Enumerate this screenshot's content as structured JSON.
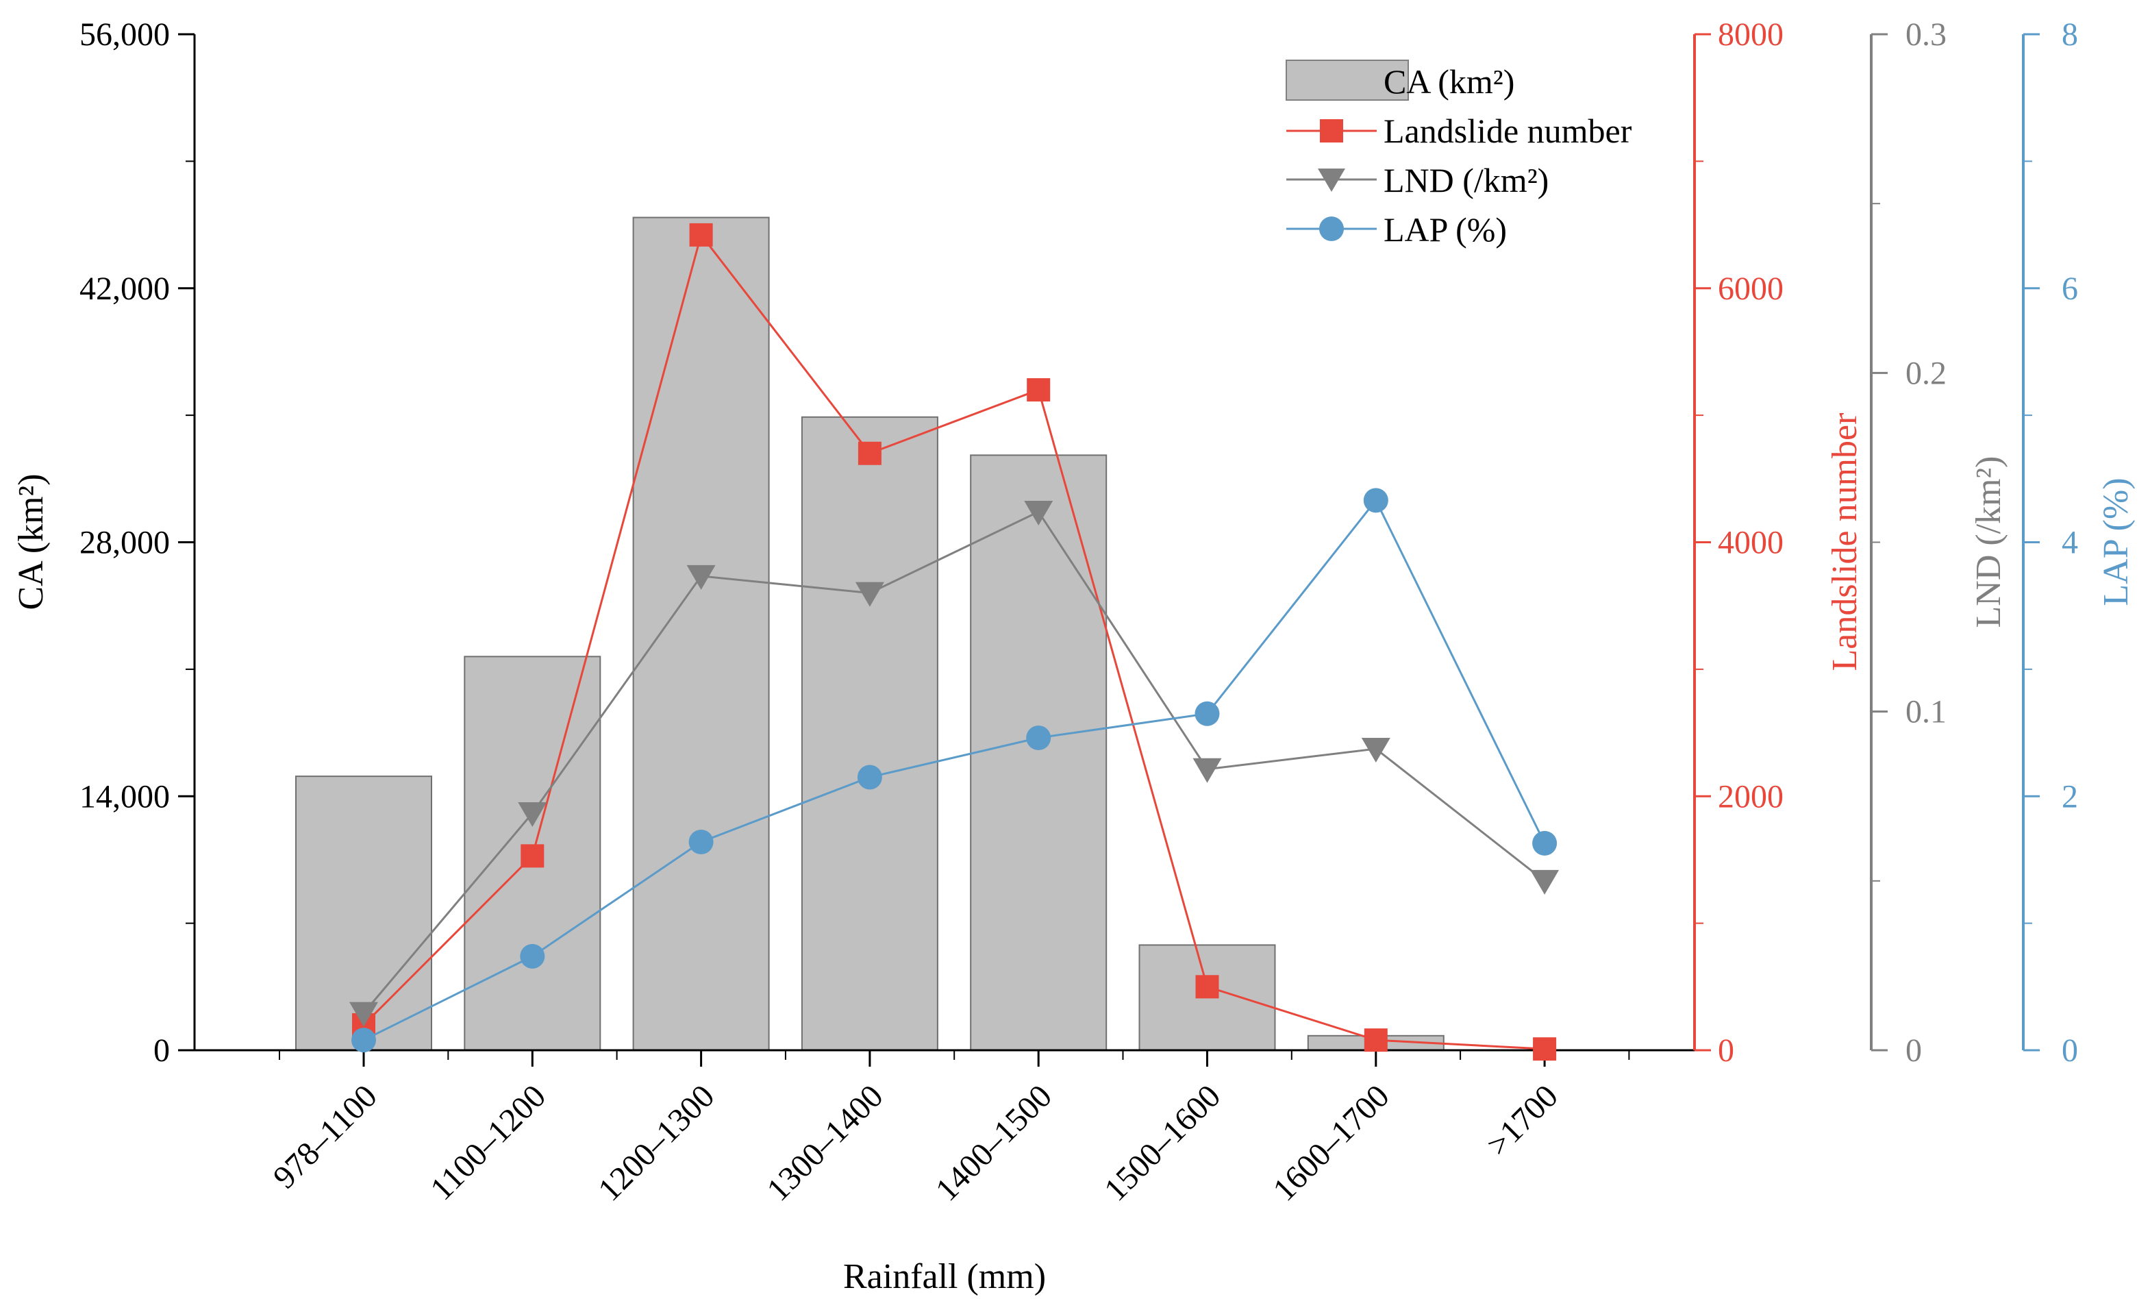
{
  "chart_data": {
    "type": "bar+line",
    "xlabel": "Rainfall (mm)",
    "categories": [
      "978–1100",
      "1100–1200",
      "1200–1300",
      "1300–1400",
      "1400–1500",
      "1500–1600",
      "1600–1700",
      ">1700"
    ],
    "axes": {
      "ca": {
        "label": "CA (km²)",
        "range": [
          0,
          56000
        ],
        "ticks": [
          "0",
          "14,000",
          "28,000",
          "42,000",
          "56,000"
        ],
        "color": "#000000"
      },
      "landslide": {
        "label": "Landslide number",
        "range": [
          0,
          8000
        ],
        "ticks": [
          "0",
          "2000",
          "4000",
          "6000",
          "8000"
        ],
        "color": "#e8473b"
      },
      "lnd": {
        "label": "LND (/km²)",
        "range": [
          0,
          0.3
        ],
        "ticks": [
          "0",
          "0.1",
          "0.2",
          "0.3"
        ],
        "color": "#808080"
      },
      "lap": {
        "label": "LAP (%)",
        "range": [
          0,
          8
        ],
        "ticks": [
          "0",
          "2",
          "4",
          "6",
          "8"
        ],
        "color": "#5b9bc9"
      }
    },
    "series": [
      {
        "name": "CA (km²)",
        "type": "bar",
        "axis": "ca",
        "color": "#c0c0c0",
        "values": [
          15100,
          21700,
          45900,
          34900,
          32800,
          5800,
          800,
          0
        ]
      },
      {
        "name": "Landslide number",
        "type": "line",
        "marker": "square",
        "axis": "landslide",
        "color": "#e8473b",
        "values": [
          200,
          1530,
          6420,
          4700,
          5200,
          500,
          80,
          10
        ]
      },
      {
        "name": "LND (/km²)",
        "type": "line",
        "marker": "triangle-down",
        "axis": "lnd",
        "color": "#808080",
        "values": [
          0.011,
          0.07,
          0.14,
          0.135,
          0.159,
          0.083,
          0.089,
          0.05
        ]
      },
      {
        "name": "LAP (%)",
        "type": "line",
        "marker": "circle",
        "axis": "lap",
        "color": "#5b9bc9",
        "values": [
          0.08,
          0.74,
          1.64,
          2.15,
          2.46,
          2.65,
          4.33,
          1.63
        ]
      }
    ],
    "legend": {
      "position": "top-right"
    }
  }
}
